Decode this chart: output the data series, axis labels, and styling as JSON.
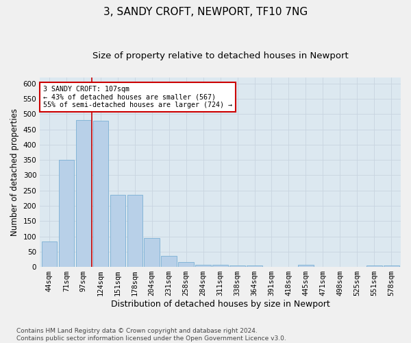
{
  "title": "3, SANDY CROFT, NEWPORT, TF10 7NG",
  "subtitle": "Size of property relative to detached houses in Newport",
  "xlabel": "Distribution of detached houses by size in Newport",
  "ylabel": "Number of detached properties",
  "categories": [
    "44sqm",
    "71sqm",
    "97sqm",
    "124sqm",
    "151sqm",
    "178sqm",
    "204sqm",
    "231sqm",
    "258sqm",
    "284sqm",
    "311sqm",
    "338sqm",
    "364sqm",
    "391sqm",
    "418sqm",
    "445sqm",
    "471sqm",
    "498sqm",
    "525sqm",
    "551sqm",
    "578sqm"
  ],
  "values": [
    83,
    350,
    480,
    478,
    235,
    235,
    95,
    37,
    17,
    8,
    8,
    5,
    5,
    0,
    0,
    6,
    0,
    0,
    0,
    5,
    5
  ],
  "bar_color": "#b8d0e8",
  "bar_edge_color": "#7aafd4",
  "vline_x": 2.5,
  "vline_color": "#cc0000",
  "annotation_text": "3 SANDY CROFT: 107sqm\n← 43% of detached houses are smaller (567)\n55% of semi-detached houses are larger (724) →",
  "annotation_box_color": "#ffffff",
  "annotation_box_edge": "#cc0000",
  "ylim": [
    0,
    620
  ],
  "yticks": [
    0,
    50,
    100,
    150,
    200,
    250,
    300,
    350,
    400,
    450,
    500,
    550,
    600
  ],
  "grid_color": "#c8d4e0",
  "bg_color": "#dce8f0",
  "footer": "Contains HM Land Registry data © Crown copyright and database right 2024.\nContains public sector information licensed under the Open Government Licence v3.0.",
  "title_fontsize": 11,
  "subtitle_fontsize": 9.5,
  "xlabel_fontsize": 9,
  "ylabel_fontsize": 8.5,
  "tick_fontsize": 7.5,
  "footer_fontsize": 6.5
}
